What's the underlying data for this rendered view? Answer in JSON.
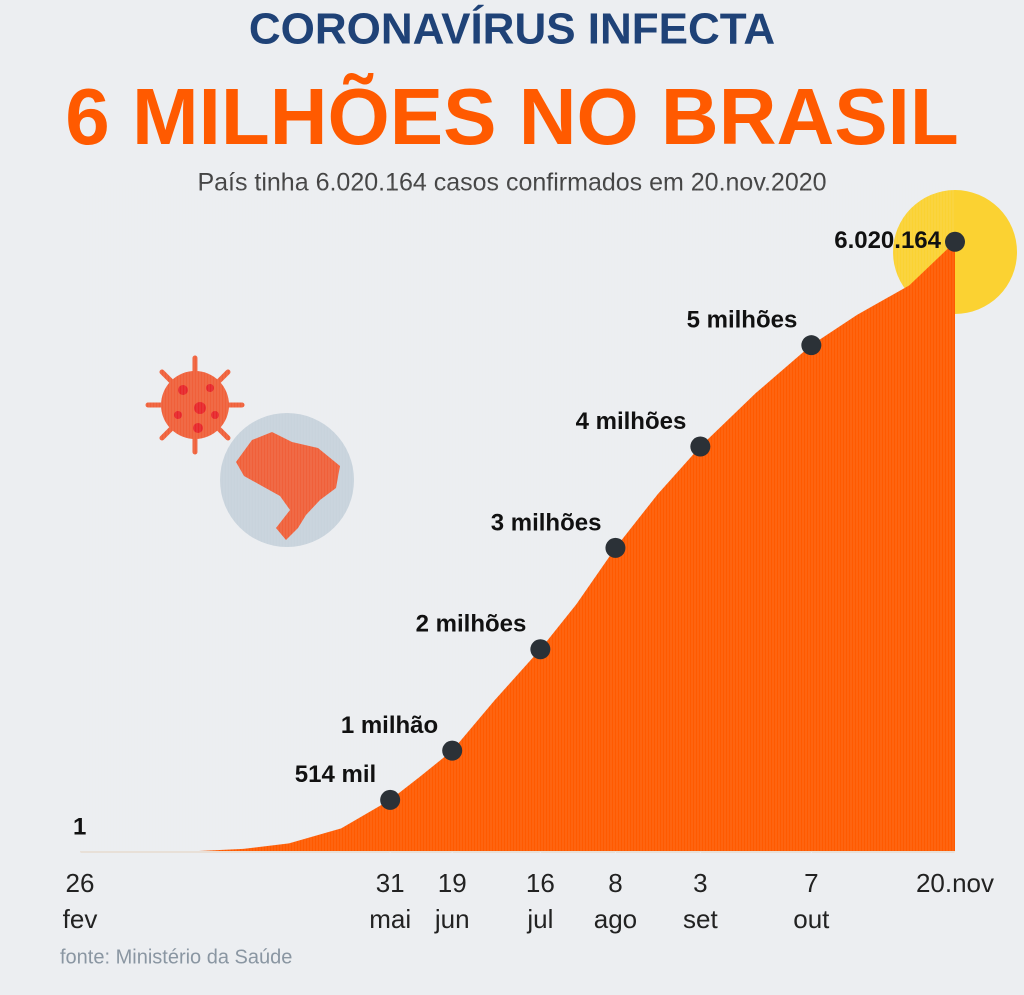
{
  "chart_data": {
    "type": "area",
    "title": "CORONAVÍRUS INFECTA",
    "headline": "6 MILHÕES NO BRASIL",
    "subtitle": "País tinha 6.020.164 casos confirmados em 20.nov.2020",
    "source": "fonte: Ministério da Saúde",
    "xlim": [
      0,
      268
    ],
    "ylim": [
      0,
      6600000
    ],
    "xticks": [
      {
        "value": 0,
        "label": "26 fev"
      },
      {
        "value": 95,
        "label": "31 mai"
      },
      {
        "value": 114,
        "label": "19 jun"
      },
      {
        "value": 141,
        "label": "16 jul"
      },
      {
        "value": 164,
        "label": "8 ago"
      },
      {
        "value": 190,
        "label": "3 set"
      },
      {
        "value": 224,
        "label": "7 out"
      },
      {
        "value": 268,
        "label": "20.nov"
      }
    ],
    "series": [
      {
        "color": "#ff5a00",
        "x": [
          0,
          14,
          34,
          50,
          64,
          80,
          95,
          104,
          114,
          127,
          141,
          152,
          164,
          177,
          190,
          207,
          224,
          238,
          254,
          268
        ],
        "values": [
          1,
          52,
          5717,
          30425,
          85380,
          233142,
          514000,
          739503,
          1000000,
          1496858,
          2000000,
          2442375,
          3000000,
          3532330,
          4000000,
          4528240,
          5000000,
          5298772,
          5590025,
          6020164
        ]
      },
      {
        "color": "#2b3137",
        "x": [
          0,
          95,
          114,
          141,
          164,
          190,
          224,
          268
        ],
        "values": [
          1,
          514000,
          1000000,
          2000000,
          3000000,
          4000000,
          5000000,
          6020164
        ],
        "value_labels": [
          "1",
          "514 mil",
          "1 milhão",
          "2 milhões",
          "3 milhões",
          "4 milhões",
          "5 milhões",
          "6.020.164"
        ]
      }
    ]
  }
}
